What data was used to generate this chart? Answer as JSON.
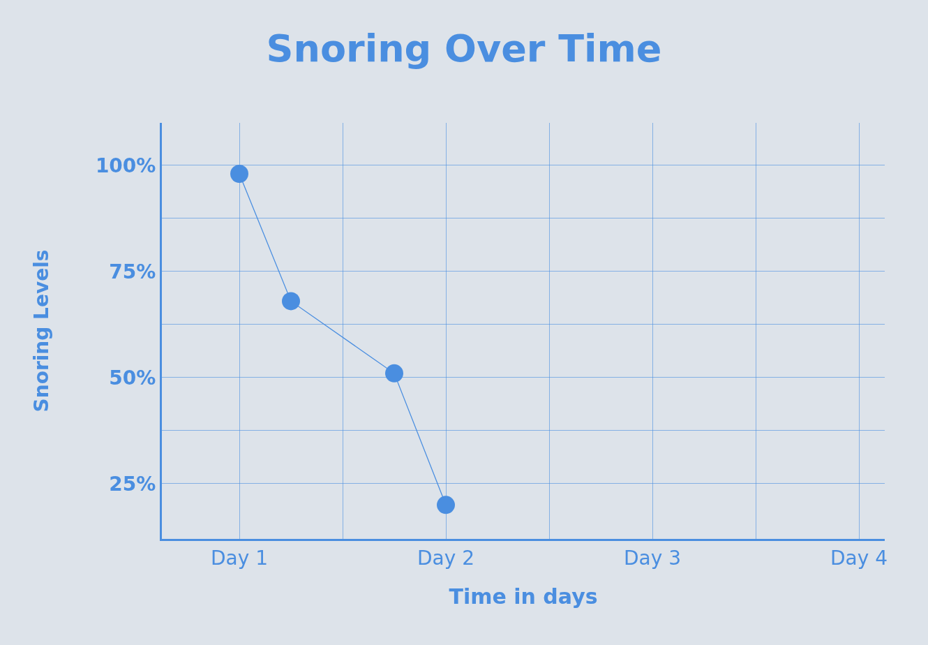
{
  "chart_data": {
    "type": "line",
    "title": "Snoring Over Time",
    "xlabel": "Time in days",
    "ylabel": "Snoring Levels",
    "categories": [
      null,
      "Day 1",
      null,
      null,
      null,
      "Day 2",
      null,
      null,
      null,
      "Day 3",
      null,
      null,
      null,
      "Day 4"
    ],
    "series": [
      {
        "color": "#4a8ee0",
        "values": [
          null,
          98,
          68,
          null,
          51,
          20,
          null,
          null,
          null,
          null,
          null,
          null,
          null,
          null
        ]
      }
    ],
    "ylim": [
      12,
      110
    ],
    "yticks": [
      {
        "value": 25,
        "label": "25%"
      },
      {
        "value": 37.5,
        "label": null
      },
      {
        "value": 50,
        "label": "50%"
      },
      {
        "value": 62.5,
        "label": null
      },
      {
        "value": 75,
        "label": "75%"
      },
      {
        "value": 87.5,
        "label": null
      },
      {
        "value": 100,
        "label": "100%"
      }
    ],
    "grid": true,
    "marker": "circle",
    "line_style": "solid"
  }
}
